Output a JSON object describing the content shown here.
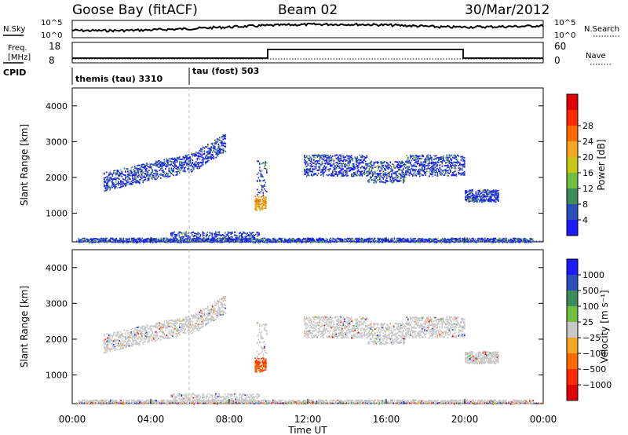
{
  "header": {
    "station": "Goose Bay (fitACF)",
    "beam": "Beam 02",
    "date": "30/Mar/2012"
  },
  "noise_panel": {
    "left_label": "N.Sky",
    "left_ticks": [
      "10^5",
      "10^0"
    ],
    "right_ticks": [
      "10^5",
      "10^0"
    ],
    "right_label": "N.Search"
  },
  "freq_panel": {
    "left_label_1": "Freq.",
    "left_label_2": "[MHz]",
    "left_ticks": [
      "18",
      "8"
    ],
    "right_ticks": [
      "60",
      "0"
    ],
    "right_label": "Nave"
  },
  "cpid": {
    "label": "CPID",
    "modes": [
      "themis (tau) 3310",
      "tau (fost) 503"
    ]
  },
  "colors": {
    "power_scale": [
      "#1a1aff",
      "#2a4fb8",
      "#3d8c5a",
      "#6fbf3f",
      "#c8c814",
      "#f5a623",
      "#ff6a00",
      "#ff2a00",
      "#e00000"
    ],
    "velocity_scale": [
      "#1a1aff",
      "#2a4fb8",
      "#3d8c5a",
      "#6fbf3f",
      "#c8c8c8",
      "#f5a623",
      "#ff6a00",
      "#ff2a00",
      "#e00000"
    ]
  },
  "chart_data": [
    {
      "type": "heatmap",
      "name": "power",
      "ylabel": "Slant Range [km]",
      "yticks": [
        "1000",
        "2000",
        "3000",
        "4000"
      ],
      "colorbar_label": "Power [dB]",
      "colorbar_ticks": [
        "4",
        "8",
        "12",
        "16",
        "20",
        "24",
        "28"
      ],
      "ylim": [
        200,
        4500
      ]
    },
    {
      "type": "heatmap",
      "name": "velocity",
      "ylabel": "Slant Range [km]",
      "yticks": [
        "1000",
        "2000",
        "3000",
        "4000"
      ],
      "colorbar_label": "Velocity [m s⁻¹]",
      "colorbar_ticks": [
        "1000",
        "500",
        "100",
        "25",
        "−25",
        "−100",
        "−500",
        "−1000"
      ],
      "xlabel": "Time UT",
      "xticks": [
        "00:00",
        "04:00",
        "08:00",
        "12:00",
        "16:00",
        "20:00",
        "00:00"
      ],
      "xlim": [
        "00:00",
        "24:00"
      ]
    }
  ]
}
